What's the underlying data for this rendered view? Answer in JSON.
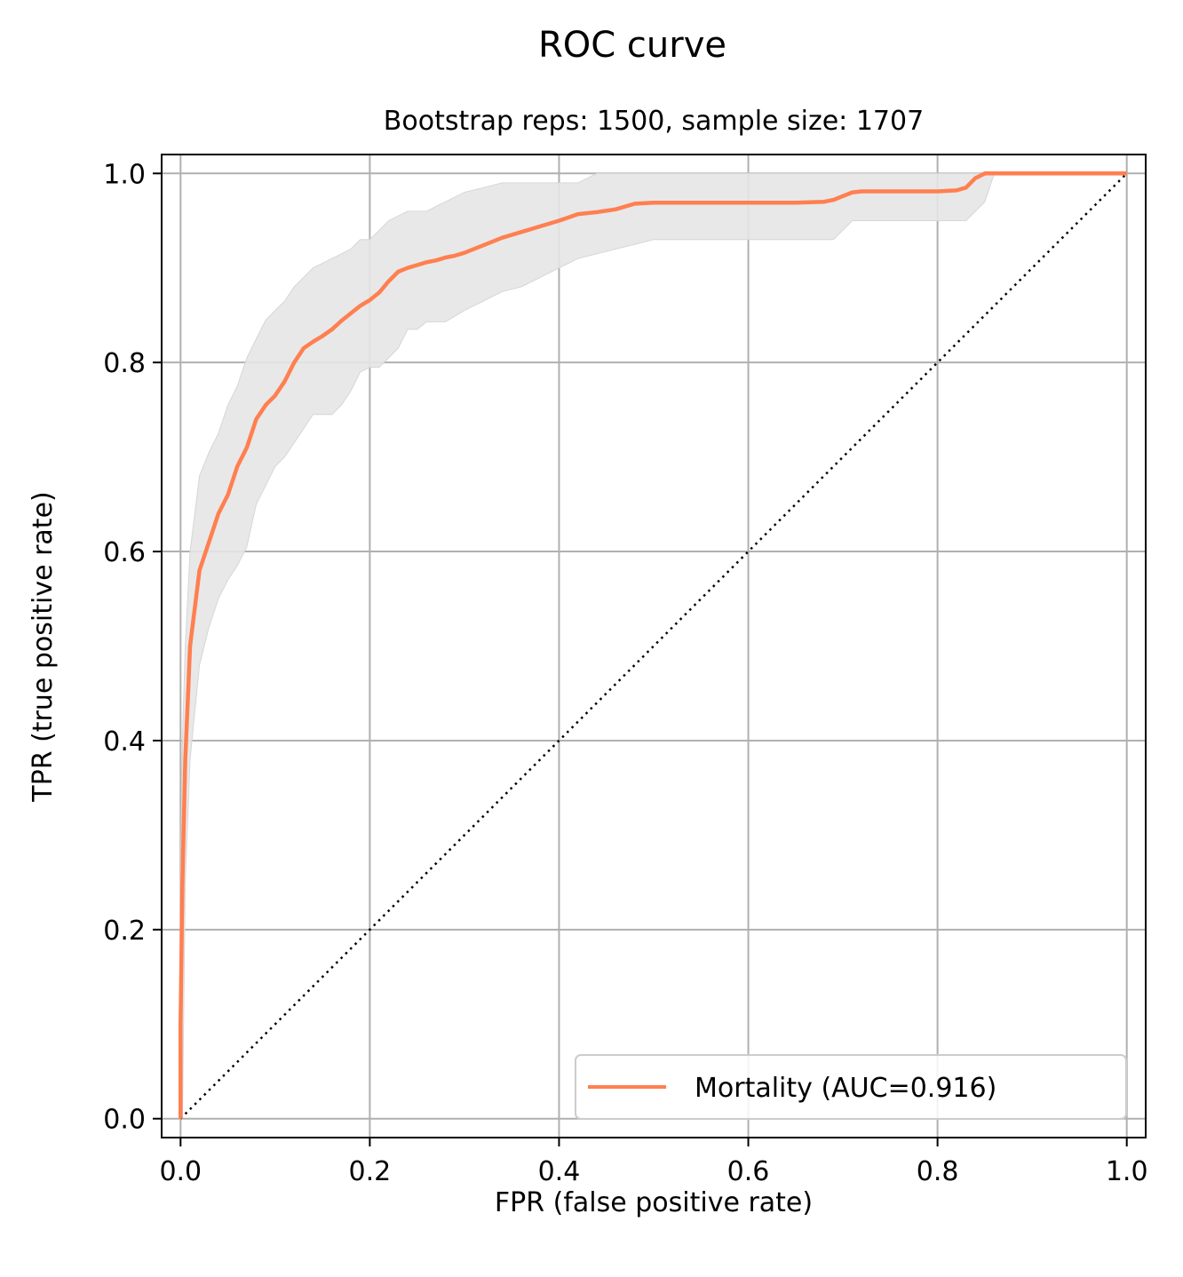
{
  "chart_data": {
    "type": "line",
    "title": "ROC curve",
    "subtitle": "Bootstrap reps: 1500, sample size: 1707",
    "xlabel": "FPR (false positive rate)",
    "ylabel": "TPR (true positive rate)",
    "xlim": [
      -0.02,
      1.02
    ],
    "ylim": [
      -0.02,
      1.02
    ],
    "xticks": [
      {
        "value": 0.0,
        "label": "0.0"
      },
      {
        "value": 0.2,
        "label": "0.2"
      },
      {
        "value": 0.4,
        "label": "0.4"
      },
      {
        "value": 0.6,
        "label": "0.6"
      },
      {
        "value": 0.8,
        "label": "0.8"
      },
      {
        "value": 1.0,
        "label": "1.0"
      }
    ],
    "yticks": [
      {
        "value": 0.0,
        "label": "0.0"
      },
      {
        "value": 0.2,
        "label": "0.2"
      },
      {
        "value": 0.4,
        "label": "0.4"
      },
      {
        "value": 0.6,
        "label": "0.6"
      },
      {
        "value": 0.8,
        "label": "0.8"
      },
      {
        "value": 1.0,
        "label": "1.0"
      }
    ],
    "grid": true,
    "legend": {
      "placement": "lower-right"
    },
    "series": [
      {
        "name": "Mortality (AUC=0.916)",
        "color": "#ff7f50",
        "x": [
          0.0,
          0.0,
          0.002,
          0.005,
          0.008,
          0.01,
          0.02,
          0.03,
          0.04,
          0.05,
          0.06,
          0.07,
          0.08,
          0.09,
          0.1,
          0.11,
          0.12,
          0.13,
          0.14,
          0.15,
          0.16,
          0.17,
          0.18,
          0.19,
          0.2,
          0.21,
          0.22,
          0.23,
          0.24,
          0.25,
          0.26,
          0.27,
          0.28,
          0.29,
          0.3,
          0.32,
          0.34,
          0.36,
          0.38,
          0.4,
          0.42,
          0.43,
          0.44,
          0.46,
          0.48,
          0.5,
          0.55,
          0.6,
          0.65,
          0.68,
          0.69,
          0.7,
          0.71,
          0.72,
          0.75,
          0.8,
          0.82,
          0.83,
          0.84,
          0.85,
          0.86,
          0.9,
          1.0
        ],
        "y": [
          0.0,
          0.1,
          0.25,
          0.38,
          0.45,
          0.5,
          0.58,
          0.61,
          0.64,
          0.66,
          0.69,
          0.71,
          0.74,
          0.755,
          0.765,
          0.78,
          0.8,
          0.815,
          0.822,
          0.828,
          0.835,
          0.844,
          0.852,
          0.86,
          0.866,
          0.874,
          0.886,
          0.896,
          0.9,
          0.903,
          0.906,
          0.908,
          0.911,
          0.913,
          0.916,
          0.924,
          0.932,
          0.938,
          0.944,
          0.95,
          0.957,
          0.958,
          0.959,
          0.962,
          0.968,
          0.969,
          0.969,
          0.969,
          0.969,
          0.97,
          0.972,
          0.976,
          0.98,
          0.981,
          0.981,
          0.981,
          0.982,
          0.985,
          0.995,
          1.0,
          1.0,
          1.0,
          1.0
        ]
      }
    ],
    "confidence_band": {
      "color": "#e6e6e6",
      "x": [
        0.0,
        0.002,
        0.005,
        0.01,
        0.02,
        0.03,
        0.04,
        0.05,
        0.06,
        0.07,
        0.08,
        0.09,
        0.1,
        0.11,
        0.12,
        0.13,
        0.14,
        0.15,
        0.16,
        0.17,
        0.18,
        0.19,
        0.2,
        0.21,
        0.22,
        0.23,
        0.24,
        0.25,
        0.26,
        0.27,
        0.28,
        0.3,
        0.32,
        0.34,
        0.36,
        0.38,
        0.4,
        0.42,
        0.44,
        0.46,
        0.48,
        0.5,
        0.55,
        0.6,
        0.65,
        0.69,
        0.7,
        0.71,
        0.72,
        0.75,
        0.8,
        0.83,
        0.84,
        0.85,
        0.86,
        0.9,
        1.0
      ],
      "lower": [
        0.0,
        0.0,
        0.25,
        0.38,
        0.48,
        0.52,
        0.55,
        0.57,
        0.585,
        0.605,
        0.65,
        0.67,
        0.69,
        0.7,
        0.715,
        0.73,
        0.745,
        0.745,
        0.745,
        0.755,
        0.77,
        0.79,
        0.795,
        0.795,
        0.805,
        0.815,
        0.835,
        0.835,
        0.843,
        0.843,
        0.843,
        0.855,
        0.865,
        0.875,
        0.88,
        0.89,
        0.9,
        0.91,
        0.915,
        0.92,
        0.925,
        0.93,
        0.93,
        0.93,
        0.93,
        0.93,
        0.94,
        0.95,
        0.95,
        0.95,
        0.95,
        0.95,
        0.96,
        0.97,
        1.0,
        1.0,
        1.0
      ],
      "upper": [
        0.25,
        0.4,
        0.5,
        0.6,
        0.68,
        0.705,
        0.725,
        0.755,
        0.775,
        0.805,
        0.825,
        0.845,
        0.855,
        0.865,
        0.88,
        0.89,
        0.9,
        0.905,
        0.91,
        0.915,
        0.92,
        0.93,
        0.93,
        0.94,
        0.95,
        0.955,
        0.96,
        0.96,
        0.96,
        0.965,
        0.97,
        0.98,
        0.985,
        0.99,
        0.99,
        0.99,
        0.99,
        0.99,
        1.0,
        1.0,
        1.0,
        1.0,
        1.0,
        1.0,
        1.0,
        1.0,
        1.0,
        1.0,
        1.0,
        1.0,
        1.0,
        1.0,
        1.0,
        1.0,
        1.0,
        1.0,
        1.0
      ]
    },
    "reference_line": {
      "x": [
        0.0,
        1.0
      ],
      "y": [
        0.0,
        1.0
      ],
      "color": "#000000",
      "style": "dotted"
    }
  }
}
